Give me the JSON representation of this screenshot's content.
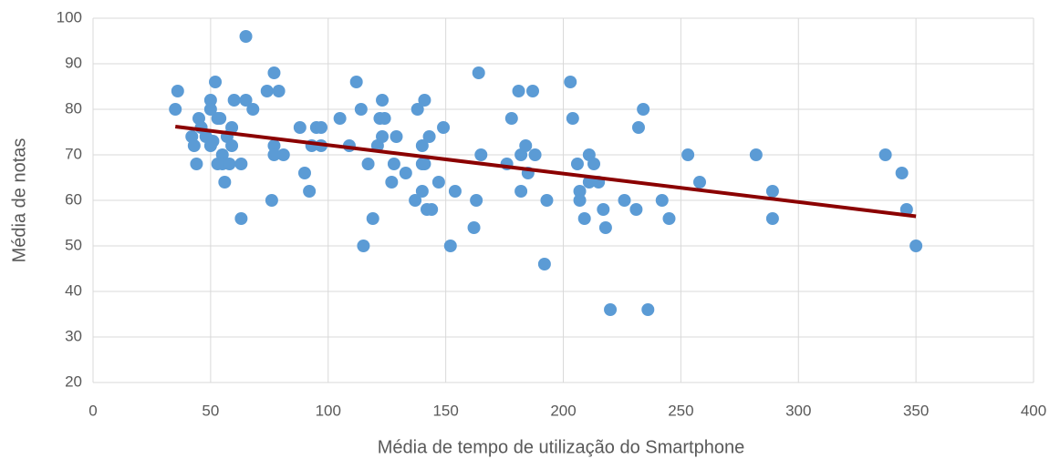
{
  "chart_data": {
    "type": "scatter",
    "x_label": "Média de tempo de utilização do Smartphone",
    "y_label": "Média de notas",
    "xlim": [
      0,
      400
    ],
    "xticks": [
      0,
      50,
      100,
      150,
      200,
      250,
      300,
      350,
      400
    ],
    "ylim": [
      20,
      100
    ],
    "yticks": [
      20,
      30,
      40,
      50,
      60,
      70,
      80,
      90,
      100
    ],
    "grid": true,
    "color": "#5b9bd5",
    "x": [
      35,
      36,
      42,
      43,
      44,
      45,
      46,
      48,
      50,
      50,
      50,
      51,
      52,
      53,
      53,
      54,
      55,
      55,
      56,
      57,
      58,
      59,
      59,
      60,
      63,
      63,
      65,
      65,
      68,
      74,
      76,
      77,
      77,
      77,
      79,
      81,
      88,
      90,
      92,
      93,
      95,
      97,
      97,
      105,
      109,
      112,
      114,
      115,
      117,
      119,
      121,
      122,
      123,
      123,
      124,
      127,
      128,
      129,
      133,
      137,
      138,
      140,
      140,
      140,
      141,
      141,
      142,
      143,
      144,
      147,
      149,
      152,
      154,
      162,
      163,
      164,
      165,
      176,
      178,
      181,
      182,
      182,
      184,
      185,
      187,
      188,
      192,
      193,
      203,
      204,
      206,
      207,
      207,
      209,
      211,
      211,
      213,
      215,
      217,
      218,
      220,
      226,
      231,
      232,
      234,
      236,
      242,
      245,
      253,
      258,
      282,
      289,
      289,
      337,
      344,
      346,
      350
    ],
    "y": [
      80,
      84,
      74,
      72,
      68,
      78,
      76,
      74,
      82,
      80,
      72,
      73,
      86,
      68,
      78,
      78,
      70,
      68,
      64,
      74,
      68,
      76,
      72,
      82,
      68,
      56,
      96,
      82,
      80,
      84,
      60,
      88,
      72,
      70,
      84,
      70,
      76,
      66,
      62,
      72,
      76,
      76,
      72,
      78,
      72,
      86,
      80,
      50,
      68,
      56,
      72,
      78,
      82,
      74,
      78,
      64,
      68,
      74,
      66,
      60,
      80,
      62,
      72,
      68,
      82,
      68,
      58,
      74,
      58,
      64,
      76,
      50,
      62,
      54,
      60,
      88,
      70,
      68,
      78,
      84,
      70,
      62,
      72,
      66,
      84,
      70,
      46,
      60,
      86,
      78,
      68,
      62,
      60,
      56,
      70,
      64,
      68,
      64,
      58,
      54,
      36,
      60,
      58,
      76,
      80,
      36,
      60,
      56,
      70,
      64,
      70,
      62,
      56,
      70,
      66,
      58,
      50
    ],
    "trendline": {
      "color": "#8b0000",
      "x": [
        35,
        350
      ],
      "y": [
        76.2,
        56.5
      ]
    }
  }
}
